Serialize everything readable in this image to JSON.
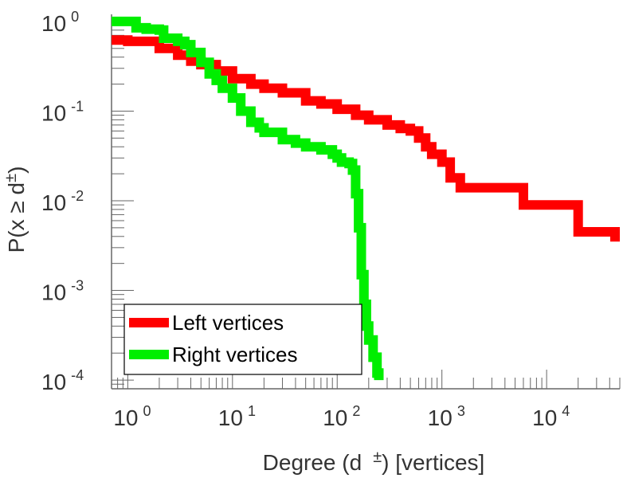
{
  "chart_data": {
    "type": "line",
    "title": "",
    "xlabel": "Degree (d",
    "xlabel_sup": "±",
    "xlabel_suffix": ") [vertices]",
    "ylabel": "P(x ≥ d",
    "ylabel_sup": "±",
    "ylabel_suffix": ")",
    "x_scale": "log",
    "y_scale": "log",
    "xlim": [
      0.7,
      50000
    ],
    "ylim": [
      8e-05,
      1.2
    ],
    "x_ticks": [
      {
        "base": "10",
        "exp": "0",
        "value": 1
      },
      {
        "base": "10",
        "exp": "1",
        "value": 10
      },
      {
        "base": "10",
        "exp": "2",
        "value": 100
      },
      {
        "base": "10",
        "exp": "3",
        "value": 1000
      },
      {
        "base": "10",
        "exp": "4",
        "value": 10000
      }
    ],
    "y_ticks": [
      {
        "base": "10",
        "exp": "0",
        "value": 1
      },
      {
        "base": "10",
        "exp": "-1",
        "value": 0.1
      },
      {
        "base": "10",
        "exp": "-2",
        "value": 0.01
      },
      {
        "base": "10",
        "exp": "-3",
        "value": 0.001
      },
      {
        "base": "10",
        "exp": "-4",
        "value": 0.0001
      }
    ],
    "legend_placement": "bottom-left",
    "grid": false,
    "series": [
      {
        "name": "Left vertices",
        "color": "#ff0000",
        "points": [
          [
            0.7,
            0.62
          ],
          [
            1,
            0.6
          ],
          [
            2,
            0.5
          ],
          [
            3,
            0.42
          ],
          [
            4,
            0.36
          ],
          [
            5,
            0.33
          ],
          [
            7,
            0.28
          ],
          [
            10,
            0.23
          ],
          [
            15,
            0.2
          ],
          [
            20,
            0.18
          ],
          [
            30,
            0.16
          ],
          [
            50,
            0.13
          ],
          [
            70,
            0.12
          ],
          [
            100,
            0.105
          ],
          [
            150,
            0.09
          ],
          [
            200,
            0.08
          ],
          [
            300,
            0.07
          ],
          [
            400,
            0.064
          ],
          [
            500,
            0.06
          ],
          [
            600,
            0.05
          ],
          [
            700,
            0.04
          ],
          [
            800,
            0.033
          ],
          [
            1000,
            0.027
          ],
          [
            1200,
            0.018
          ],
          [
            1500,
            0.014
          ],
          [
            3000,
            0.014
          ],
          [
            5000,
            0.014
          ],
          [
            6000,
            0.009
          ],
          [
            15000,
            0.009
          ],
          [
            20000,
            0.0045
          ],
          [
            40000,
            0.0045
          ],
          [
            45000,
            0.0035
          ]
        ]
      },
      {
        "name": "Right vertices",
        "color": "#00ee00",
        "points": [
          [
            0.7,
            1.0
          ],
          [
            1,
            1.0
          ],
          [
            1.2,
            0.85
          ],
          [
            1.5,
            0.82
          ],
          [
            2,
            0.8
          ],
          [
            2.2,
            0.65
          ],
          [
            3,
            0.6
          ],
          [
            3.5,
            0.55
          ],
          [
            4,
            0.45
          ],
          [
            5,
            0.35
          ],
          [
            6,
            0.26
          ],
          [
            7,
            0.22
          ],
          [
            8,
            0.18
          ],
          [
            10,
            0.14
          ],
          [
            12,
            0.1
          ],
          [
            15,
            0.075
          ],
          [
            18,
            0.065
          ],
          [
            20,
            0.058
          ],
          [
            30,
            0.048
          ],
          [
            40,
            0.044
          ],
          [
            50,
            0.04
          ],
          [
            70,
            0.037
          ],
          [
            90,
            0.033
          ],
          [
            100,
            0.03
          ],
          [
            110,
            0.027
          ],
          [
            130,
            0.026
          ],
          [
            140,
            0.022
          ],
          [
            150,
            0.012
          ],
          [
            160,
            0.005
          ],
          [
            170,
            0.0015
          ],
          [
            180,
            0.0007
          ],
          [
            190,
            0.0004
          ],
          [
            200,
            0.00028
          ],
          [
            220,
            0.00018
          ],
          [
            240,
            0.00012
          ],
          [
            250,
            0.0001
          ]
        ]
      }
    ]
  }
}
